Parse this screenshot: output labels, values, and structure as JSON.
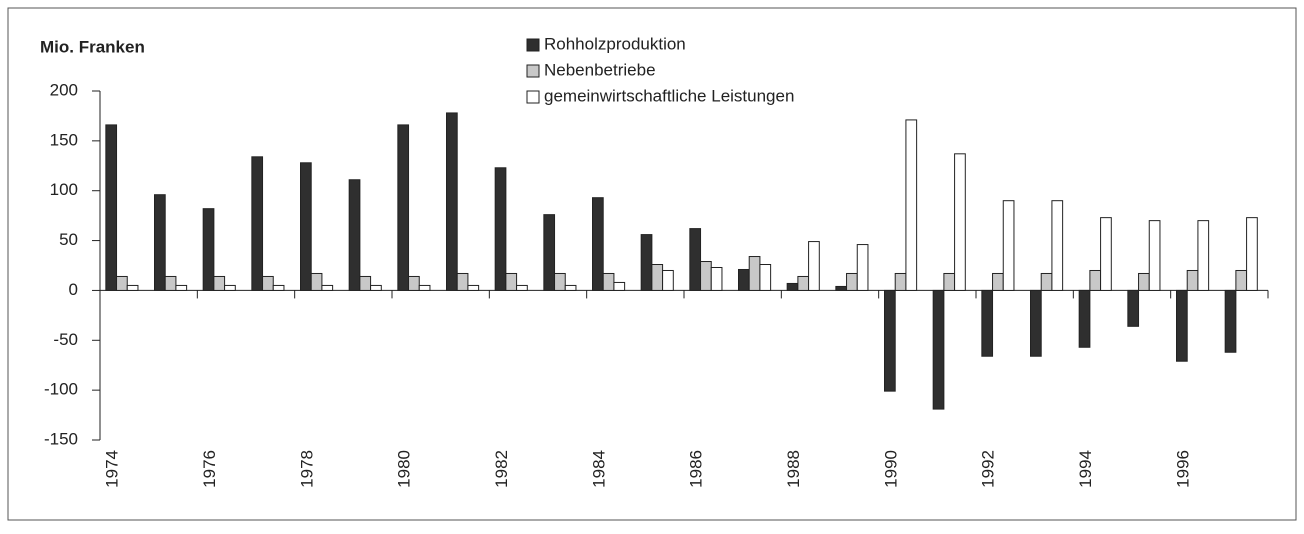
{
  "chart_data": {
    "type": "bar",
    "title": "Mio. Franken",
    "categories": [
      "1974",
      null,
      "1976",
      null,
      "1978",
      null,
      "1980",
      null,
      "1982",
      null,
      "1984",
      null,
      "1986",
      null,
      "1988",
      null,
      "1990",
      null,
      "1992",
      null,
      "1994",
      null,
      "1996",
      null
    ],
    "series": [
      {
        "name": "Rohholzproduktion",
        "color": "#2f2f2f",
        "values": [
          166,
          96,
          82,
          134,
          128,
          111,
          166,
          178,
          123,
          76,
          93,
          56,
          62,
          21,
          7,
          4,
          -101,
          -119,
          -66,
          -66,
          -57,
          -36,
          -71,
          -62
        ]
      },
      {
        "name": "Nebenbetriebe",
        "color": "#c8c8c8",
        "values": [
          14,
          14,
          14,
          14,
          17,
          14,
          14,
          17,
          17,
          17,
          17,
          26,
          29,
          34,
          14,
          17,
          17,
          17,
          17,
          17,
          20,
          17,
          20,
          20
        ]
      },
      {
        "name": "gemeinwirtschaftliche Leistungen",
        "color": "#ffffff",
        "values": [
          5,
          5,
          5,
          5,
          5,
          5,
          5,
          5,
          5,
          5,
          8,
          20,
          23,
          26,
          49,
          46,
          171,
          137,
          90,
          90,
          73,
          70,
          70,
          73
        ]
      }
    ],
    "ylim": [
      -150,
      200
    ],
    "yticks": [
      {
        "value": -150,
        "label": "-150"
      },
      {
        "value": -100,
        "label": "-100"
      },
      {
        "value": -50,
        "label": "-50"
      },
      0,
      50,
      100,
      150,
      200
    ],
    "grid": false
  }
}
